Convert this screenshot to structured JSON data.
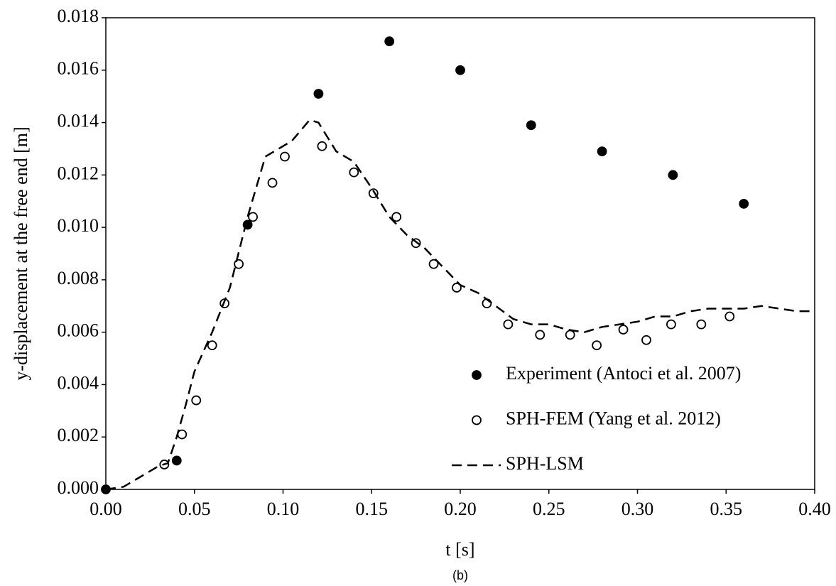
{
  "chart_data": {
    "type": "scatter",
    "caption": "(b)",
    "xlabel": "t [s]",
    "ylabel": "y-displacement at the free end [m]",
    "xlim": [
      0,
      0.4
    ],
    "ylim": [
      0,
      0.018
    ],
    "xticks": [
      {
        "value": 0,
        "label": "0.00"
      },
      {
        "value": 0.05,
        "label": "0.05"
      },
      {
        "value": 0.1,
        "label": "0.10"
      },
      {
        "value": 0.15,
        "label": "0.15"
      },
      {
        "value": 0.2,
        "label": "0.20"
      },
      {
        "value": 0.25,
        "label": "0.25"
      },
      {
        "value": 0.3,
        "label": "0.30"
      },
      {
        "value": 0.35,
        "label": "0.35"
      },
      {
        "value": 0.4,
        "label": "0.40"
      }
    ],
    "yticks": [
      {
        "value": 0,
        "label": "0.000"
      },
      {
        "value": 0.002,
        "label": "0.002"
      },
      {
        "value": 0.004,
        "label": "0.004"
      },
      {
        "value": 0.006,
        "label": "0.006"
      },
      {
        "value": 0.008,
        "label": "0.008"
      },
      {
        "value": 0.01,
        "label": "0.010"
      },
      {
        "value": 0.012,
        "label": "0.012"
      },
      {
        "value": 0.014,
        "label": "0.014"
      },
      {
        "value": 0.016,
        "label": "0.016"
      },
      {
        "value": 0.018,
        "label": "0.018"
      }
    ],
    "legend": "lower right",
    "series": [
      {
        "name": "Experiment (Antoci et al. 2007)",
        "color": "#000000",
        "marker": "filled-circle",
        "x": [
          0,
          0.04,
          0.08,
          0.12,
          0.16,
          0.2,
          0.24,
          0.28,
          0.32,
          0.36
        ],
        "values": [
          0,
          0.0011,
          0.0101,
          0.0151,
          0.0171,
          0.016,
          0.0139,
          0.0129,
          0.012,
          0.0109
        ]
      },
      {
        "name": "SPH-FEM (Yang et al. 2012)",
        "color": "#000000",
        "marker": "hollow-circle",
        "x": [
          0.033,
          0.043,
          0.051,
          0.06,
          0.067,
          0.075,
          0.083,
          0.094,
          0.101,
          0.122,
          0.14,
          0.151,
          0.164,
          0.175,
          0.185,
          0.198,
          0.215,
          0.227,
          0.245,
          0.262,
          0.277,
          0.292,
          0.305,
          0.319,
          0.336,
          0.352
        ],
        "values": [
          0.00095,
          0.0021,
          0.0034,
          0.0055,
          0.0071,
          0.0086,
          0.0104,
          0.0117,
          0.0127,
          0.0131,
          0.0121,
          0.0113,
          0.0104,
          0.0094,
          0.0086,
          0.0077,
          0.0071,
          0.0063,
          0.0059,
          0.0059,
          0.0055,
          0.0061,
          0.0057,
          0.0063,
          0.0063,
          0.0066
        ]
      },
      {
        "name": "SPH-LSM",
        "color": "#000000",
        "line": "dashed",
        "x": [
          0,
          0.01,
          0.02,
          0.03,
          0.035,
          0.04,
          0.045,
          0.05,
          0.06,
          0.07,
          0.08,
          0.09,
          0.1,
          0.105,
          0.115,
          0.12,
          0.13,
          0.14,
          0.15,
          0.16,
          0.17,
          0.18,
          0.19,
          0.2,
          0.21,
          0.22,
          0.23,
          0.24,
          0.25,
          0.26,
          0.27,
          0.28,
          0.29,
          0.3,
          0.31,
          0.32,
          0.33,
          0.34,
          0.35,
          0.36,
          0.37,
          0.38,
          0.39,
          0.4
        ],
        "values": [
          0,
          0.0001,
          0.0005,
          0.0009,
          0.001,
          0.002,
          0.0032,
          0.0045,
          0.006,
          0.0077,
          0.0104,
          0.0127,
          0.0131,
          0.0133,
          0.0141,
          0.014,
          0.0129,
          0.0125,
          0.0115,
          0.0104,
          0.0097,
          0.0092,
          0.0085,
          0.0078,
          0.0075,
          0.007,
          0.0065,
          0.0063,
          0.0063,
          0.0061,
          0.006,
          0.0062,
          0.0063,
          0.0064,
          0.0066,
          0.0066,
          0.0068,
          0.0069,
          0.0069,
          0.0069,
          0.007,
          0.0069,
          0.0068,
          0.0068
        ]
      }
    ]
  }
}
